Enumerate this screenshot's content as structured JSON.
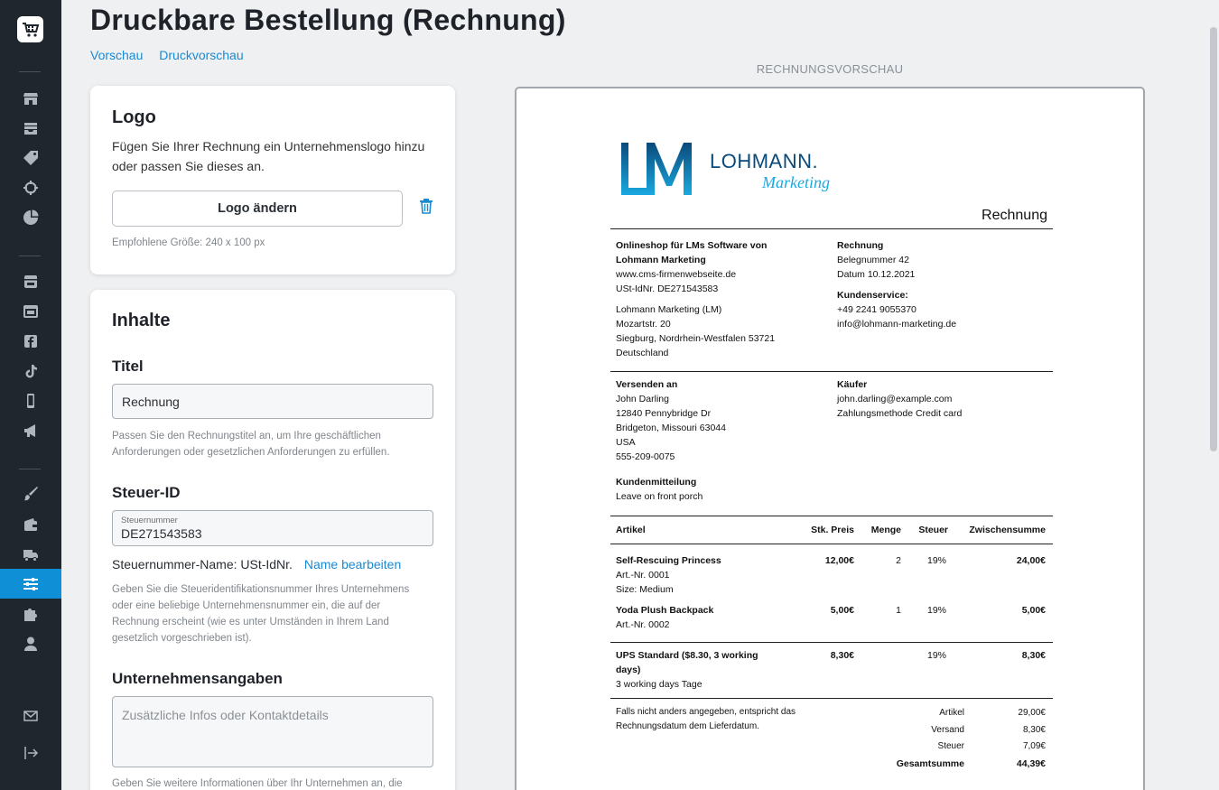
{
  "page": {
    "title": "Druckbare Bestellung (Rechnung)",
    "link_preview": "Vorschau",
    "link_print_preview": "Druckvorschau"
  },
  "logo_card": {
    "title": "Logo",
    "description": "Fügen Sie Ihrer Rechnung ein Unternehmenslogo hinzu oder passen Sie dieses an.",
    "change_button": "Logo ändern",
    "recommended_size": "Empfohlene Größe: 240 x 100 px"
  },
  "content_card": {
    "title": "Inhalte",
    "title_section": {
      "heading": "Titel",
      "value": "Rechnung",
      "help": "Passen Sie den Rechnungstitel an, um Ihre geschäftlichen Anforderungen oder gesetzlichen Anforderungen zu erfüllen."
    },
    "tax_section": {
      "heading": "Steuer-ID",
      "field_label": "Steuernummer",
      "value": "DE271543583",
      "name_label": "Steuernummer-Name: USt-IdNr.",
      "edit_name_link": "Name bearbeiten",
      "help": "Geben Sie die Steueridentifikationsnummer Ihres Unternehmens oder eine beliebige Unternehmensnummer ein, die auf der Rechnung erscheint (wie es unter Umständen in Ihrem Land gesetzlich vorgeschrieben ist)."
    },
    "company_section": {
      "heading": "Unternehmensangaben",
      "placeholder": "Zusätzliche Infos oder Kontaktdetails",
      "help": "Geben Sie weitere Informationen über Ihr Unternehmen an, die"
    }
  },
  "preview": {
    "label": "RECHNUNGSVORSCHAU",
    "logo_text_main": "LOHMANN.",
    "logo_text_sub": "Marketing",
    "doc_title": "Rechnung",
    "seller": {
      "name": "Onlineshop für LMs Software von Lohmann Marketing",
      "website": "www.cms-firmenwebseite.de",
      "vat": "USt-IdNr. DE271543583",
      "addr1": "Lohmann Marketing (LM)",
      "addr2": "Mozartstr. 20",
      "addr3": "Siegburg, Nordrhein-Westfalen 53721",
      "addr4": "Deutschland"
    },
    "invoice": {
      "heading": "Rechnung",
      "number": "Belegnummer 42",
      "date": "Datum 10.12.2021",
      "service_heading": "Kundenservice:",
      "phone": "+49 2241 9055370",
      "email": "info@lohmann-marketing.de"
    },
    "ship_to": {
      "heading": "Versenden an",
      "name": "John Darling",
      "street": "12840 Pennybridge Dr",
      "city": "Bridgeton, Missouri 63044",
      "country": "USA",
      "phone": "555-209-0075"
    },
    "buyer": {
      "heading": "Käufer",
      "email": "john.darling@example.com",
      "payment": "Zahlungsmethode Credit card"
    },
    "customer_note": {
      "heading": "Kundenmitteilung",
      "text": "Leave on front porch"
    },
    "table_headers": {
      "item": "Artikel",
      "price": "Stk. Preis",
      "qty": "Menge",
      "tax": "Steuer",
      "subtotal": "Zwischensumme"
    },
    "items": [
      {
        "name": "Self-Rescuing Princess",
        "sku": "Art.-Nr. 0001",
        "option": "Size: Medium",
        "price": "12,00€",
        "qty": "2",
        "tax": "19%",
        "subtotal": "24,00€"
      },
      {
        "name": "Yoda Plush Backpack",
        "sku": "Art.-Nr. 0002",
        "option": "",
        "price": "5,00€",
        "qty": "1",
        "tax": "19%",
        "subtotal": "5,00€"
      }
    ],
    "shipping": {
      "name_line1": "UPS Standard ($8.30, 3 working",
      "name_line2": "days)",
      "detail": "3 working days Tage",
      "price": "8,30€",
      "tax": "19%",
      "subtotal": "8,30€"
    },
    "footer_note": "Falls nicht anders angegeben, entspricht das Rechnungsdatum dem Lieferdatum.",
    "totals": {
      "items_label": "Artikel",
      "items_value": "29,00€",
      "shipping_label": "Versand",
      "shipping_value": "8,30€",
      "tax_label": "Steuer",
      "tax_value": "7,09€",
      "total_label": "Gesamtsumme",
      "total_value": "44,39€"
    }
  },
  "colors": {
    "sidebar_bg": "#1f262e",
    "accent": "#0f8fd6",
    "link": "#1a8ad4"
  }
}
